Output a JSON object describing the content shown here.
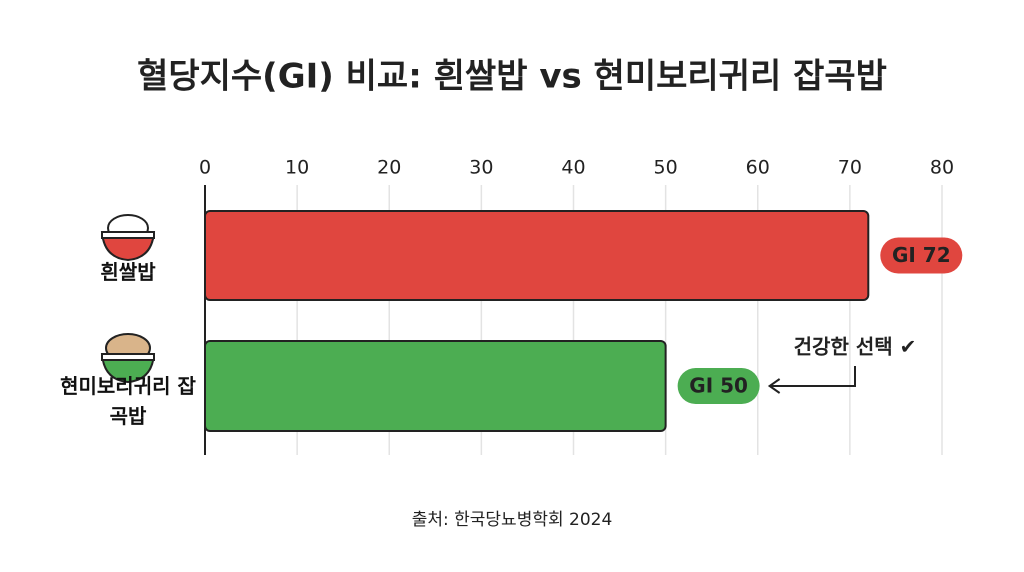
{
  "chart_data": {
    "type": "hbar",
    "title": "혈당지수(GI) 비교: 흰쌀밥 vs 현미보리귀리 잡곡밥",
    "categories": [
      "흰쌀밥",
      "현미보리귀리 잡곡밥"
    ],
    "values": [
      72,
      50
    ],
    "value_labels": [
      "GI 72",
      "GI 50"
    ],
    "colors": [
      "#e0463f",
      "#4cad52"
    ],
    "xlim": [
      0,
      80
    ],
    "xticks": [
      0,
      10,
      20,
      30,
      40,
      50,
      60,
      70,
      80
    ],
    "grid": true,
    "annotation": "건강한 선택 ✔",
    "source": "출처: 한국당뇨병학회 2024"
  }
}
